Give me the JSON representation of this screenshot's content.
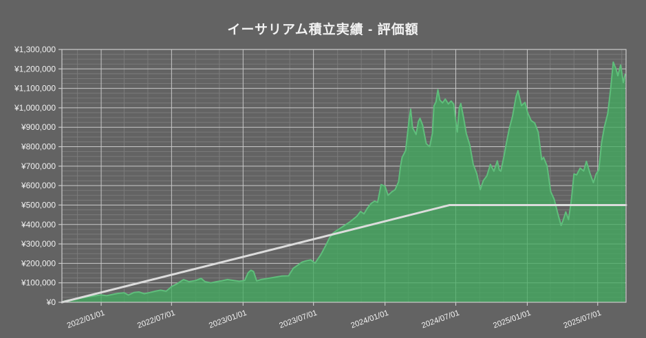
{
  "window": {
    "title": "イーサリアム積立実績 - 評価額"
  },
  "colors": {
    "background": "#636363",
    "grid_major": "#c9c9c9",
    "grid_minor": "#7b7b7b",
    "plot_border": "#cccccc",
    "area_fill": "#42AC5F",
    "area_stroke": "#5FBE7B",
    "principal_line": "#DCDCDC",
    "text": "#F2F2F2"
  },
  "chart_data": {
    "type": "area",
    "title": "イーサリアム積立実績 - 評価額",
    "grid": true,
    "legend_position": "none",
    "ylim": [
      0,
      1300000
    ],
    "y_major_step": 100000,
    "y_minor_step": 25000,
    "y_tick_labels": [
      "¥0",
      "¥100,000",
      "¥200,000",
      "¥300,000",
      "¥400,000",
      "¥500,000",
      "¥600,000",
      "¥700,000",
      "¥800,000",
      "¥900,000",
      "¥1,000,000",
      "¥1,100,000",
      "¥1,200,000",
      "¥1,300,000"
    ],
    "x_range": [
      "2021-09-22",
      "2025-09-12"
    ],
    "x_tick_dates": [
      "2022-01-01",
      "2022-07-01",
      "2023-01-01",
      "2023-07-01",
      "2024-01-01",
      "2024-07-01",
      "2025-01-01",
      "2025-07-01"
    ],
    "x_tick_labels": [
      "2022/01/01",
      "2022/07/01",
      "2023/01/01",
      "2023/07/01",
      "2024/01/01",
      "2024/07/01",
      "2025/01/01",
      "2025/07/01"
    ],
    "x_minor_months": [
      1,
      3,
      5,
      7,
      9,
      11
    ],
    "series": [
      {
        "id": "valuation-area",
        "name": "評価額",
        "kind": "area",
        "fill": "#42AC5F",
        "fill_opacity": 0.75,
        "stroke": "#5FBE7B",
        "points": [
          [
            "2021-09-22",
            2000
          ],
          [
            "2021-10-09",
            11000
          ],
          [
            "2021-10-27",
            17000
          ],
          [
            "2021-11-13",
            23000
          ],
          [
            "2021-12-01",
            29000
          ],
          [
            "2021-12-19",
            34000
          ],
          [
            "2022-01-01",
            38000
          ],
          [
            "2022-01-15",
            34000
          ],
          [
            "2022-02-01",
            41000
          ],
          [
            "2022-02-14",
            46000
          ],
          [
            "2022-03-01",
            49000
          ],
          [
            "2022-03-12",
            37000
          ],
          [
            "2022-03-26",
            50000
          ],
          [
            "2022-04-08",
            53000
          ],
          [
            "2022-04-22",
            44000
          ],
          [
            "2022-05-06",
            50000
          ],
          [
            "2022-05-20",
            57000
          ],
          [
            "2022-06-03",
            62000
          ],
          [
            "2022-06-17",
            57000
          ],
          [
            "2022-07-01",
            81000
          ],
          [
            "2022-07-15",
            95000
          ],
          [
            "2022-08-01",
            117000
          ],
          [
            "2022-08-15",
            106000
          ],
          [
            "2022-09-01",
            112000
          ],
          [
            "2022-09-15",
            123000
          ],
          [
            "2022-09-25",
            106000
          ],
          [
            "2022-10-10",
            100000
          ],
          [
            "2022-10-25",
            106000
          ],
          [
            "2022-11-08",
            111000
          ],
          [
            "2022-11-22",
            117000
          ],
          [
            "2022-12-08",
            112000
          ],
          [
            "2022-12-22",
            108000
          ],
          [
            "2023-01-05",
            112000
          ],
          [
            "2023-01-14",
            152000
          ],
          [
            "2023-01-21",
            165000
          ],
          [
            "2023-01-28",
            158000
          ],
          [
            "2023-02-05",
            110000
          ],
          [
            "2023-02-16",
            117000
          ],
          [
            "2023-03-06",
            123000
          ],
          [
            "2023-03-24",
            129000
          ],
          [
            "2023-04-10",
            135000
          ],
          [
            "2023-04-28",
            136000
          ],
          [
            "2023-05-10",
            175000
          ],
          [
            "2023-05-16",
            183000
          ],
          [
            "2023-06-02",
            207000
          ],
          [
            "2023-06-12",
            213000
          ],
          [
            "2023-06-24",
            218000
          ],
          [
            "2023-07-05",
            201000
          ],
          [
            "2023-07-20",
            245000
          ],
          [
            "2023-08-01",
            290000
          ],
          [
            "2023-08-11",
            330000
          ],
          [
            "2023-08-20",
            355000
          ],
          [
            "2023-08-29",
            368000
          ],
          [
            "2023-09-15",
            390000
          ],
          [
            "2023-10-03",
            414000
          ],
          [
            "2023-10-21",
            443000
          ],
          [
            "2023-10-30",
            467000
          ],
          [
            "2023-11-08",
            455000
          ],
          [
            "2023-11-17",
            485000
          ],
          [
            "2023-11-26",
            508000
          ],
          [
            "2023-12-05",
            520000
          ],
          [
            "2023-12-13",
            514000
          ],
          [
            "2023-12-22",
            605000
          ],
          [
            "2024-01-01",
            597000
          ],
          [
            "2024-01-09",
            550000
          ],
          [
            "2024-01-18",
            567000
          ],
          [
            "2024-01-27",
            579000
          ],
          [
            "2024-02-05",
            620000
          ],
          [
            "2024-02-10",
            700000
          ],
          [
            "2024-02-14",
            745000
          ],
          [
            "2024-02-23",
            780000
          ],
          [
            "2024-03-03",
            940000
          ],
          [
            "2024-03-07",
            993000
          ],
          [
            "2024-03-12",
            898000
          ],
          [
            "2024-03-21",
            863000
          ],
          [
            "2024-03-27",
            930000
          ],
          [
            "2024-03-31",
            946000
          ],
          [
            "2024-04-07",
            910000
          ],
          [
            "2024-04-16",
            816000
          ],
          [
            "2024-04-25",
            800000
          ],
          [
            "2024-05-02",
            870000
          ],
          [
            "2024-05-06",
            1010000
          ],
          [
            "2024-05-11",
            1030000
          ],
          [
            "2024-05-16",
            1093000
          ],
          [
            "2024-05-21",
            1040000
          ],
          [
            "2024-05-28",
            1025000
          ],
          [
            "2024-06-04",
            1045000
          ],
          [
            "2024-06-12",
            1020000
          ],
          [
            "2024-06-19",
            1035000
          ],
          [
            "2024-06-26",
            1018000
          ],
          [
            "2024-07-02",
            920000
          ],
          [
            "2024-07-05",
            875000
          ],
          [
            "2024-07-10",
            1000000
          ],
          [
            "2024-07-14",
            1022000
          ],
          [
            "2024-07-21",
            950000
          ],
          [
            "2024-07-28",
            869000
          ],
          [
            "2024-08-06",
            810000
          ],
          [
            "2024-08-15",
            709000
          ],
          [
            "2024-08-24",
            662000
          ],
          [
            "2024-09-02",
            579000
          ],
          [
            "2024-09-10",
            626000
          ],
          [
            "2024-09-19",
            650000
          ],
          [
            "2024-09-28",
            709000
          ],
          [
            "2024-10-07",
            674000
          ],
          [
            "2024-10-16",
            727000
          ],
          [
            "2024-10-21",
            680000
          ],
          [
            "2024-10-25",
            674000
          ],
          [
            "2024-11-02",
            750000
          ],
          [
            "2024-11-08",
            816000
          ],
          [
            "2024-11-15",
            887000
          ],
          [
            "2024-11-24",
            957000
          ],
          [
            "2024-12-03",
            1058000
          ],
          [
            "2024-12-08",
            1088000
          ],
          [
            "2024-12-17",
            1011000
          ],
          [
            "2024-12-26",
            1028000
          ],
          [
            "2025-01-02",
            975000
          ],
          [
            "2025-01-11",
            934000
          ],
          [
            "2025-01-20",
            922000
          ],
          [
            "2025-01-29",
            875000
          ],
          [
            "2025-02-07",
            733000
          ],
          [
            "2025-02-12",
            745000
          ],
          [
            "2025-02-21",
            700000
          ],
          [
            "2025-03-02",
            570000
          ],
          [
            "2025-03-11",
            530000
          ],
          [
            "2025-03-20",
            460000
          ],
          [
            "2025-03-29",
            395000
          ],
          [
            "2025-04-03",
            420000
          ],
          [
            "2025-04-10",
            465000
          ],
          [
            "2025-04-17",
            425000
          ],
          [
            "2025-04-24",
            520000
          ],
          [
            "2025-05-01",
            660000
          ],
          [
            "2025-05-08",
            655000
          ],
          [
            "2025-05-17",
            690000
          ],
          [
            "2025-05-26",
            675000
          ],
          [
            "2025-06-02",
            725000
          ],
          [
            "2025-06-11",
            665000
          ],
          [
            "2025-06-20",
            615000
          ],
          [
            "2025-06-27",
            660000
          ],
          [
            "2025-07-04",
            680000
          ],
          [
            "2025-07-11",
            820000
          ],
          [
            "2025-07-18",
            900000
          ],
          [
            "2025-07-27",
            970000
          ],
          [
            "2025-08-03",
            1090000
          ],
          [
            "2025-08-10",
            1235000
          ],
          [
            "2025-08-17",
            1200000
          ],
          [
            "2025-08-22",
            1165000
          ],
          [
            "2025-08-29",
            1220000
          ],
          [
            "2025-09-05",
            1130000
          ],
          [
            "2025-09-10",
            1175000
          ]
        ]
      },
      {
        "id": "principal-line",
        "name": "",
        "kind": "line",
        "stroke": "#DCDCDC",
        "points": [
          [
            "2021-09-22",
            0
          ],
          [
            "2024-06-15",
            500000
          ],
          [
            "2025-09-12",
            500000
          ]
        ]
      }
    ]
  }
}
